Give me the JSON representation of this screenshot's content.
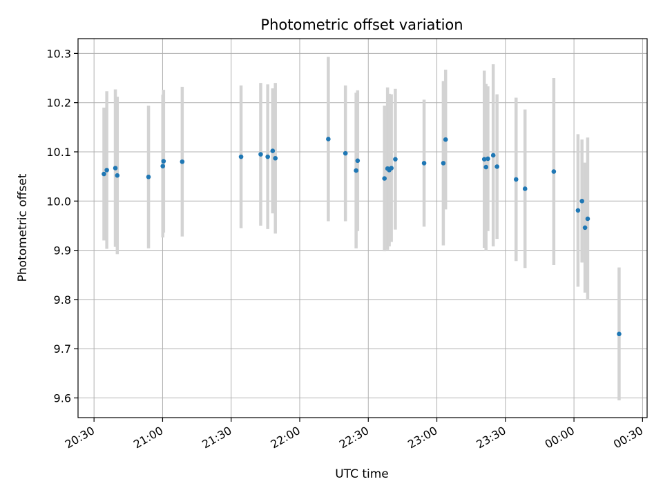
{
  "chart_data": {
    "type": "scatter",
    "title": "Photometric offset variation",
    "xlabel": "UTC time",
    "ylabel": "Photometric offset",
    "xlim": [
      "20:23",
      "00:32"
    ],
    "ylim": [
      9.56,
      10.33
    ],
    "x_ticks": [
      "20:30",
      "21:00",
      "21:30",
      "22:00",
      "22:30",
      "23:00",
      "23:30",
      "00:00",
      "00:30"
    ],
    "y_ticks": [
      9.6,
      9.7,
      9.8,
      9.9,
      10.0,
      10.1,
      10.2,
      10.3
    ],
    "grid": true,
    "colors": {
      "point": "#1f77b4",
      "errorbar": "#d3d3d3",
      "grid": "#b0b0b0"
    },
    "points": [
      {
        "time": "20:34:20",
        "y": 10.055,
        "err": 0.135
      },
      {
        "time": "20:35:35",
        "y": 10.063,
        "err": 0.16
      },
      {
        "time": "20:39:20",
        "y": 10.067,
        "err": 0.16
      },
      {
        "time": "20:40:10",
        "y": 10.052,
        "err": 0.16
      },
      {
        "time": "20:53:50",
        "y": 10.049,
        "err": 0.145
      },
      {
        "time": "21:00:05",
        "y": 10.071,
        "err": 0.145
      },
      {
        "time": "21:00:25",
        "y": 10.081,
        "err": 0.145
      },
      {
        "time": "21:08:35",
        "y": 10.08,
        "err": 0.152
      },
      {
        "time": "21:34:20",
        "y": 10.09,
        "err": 0.145
      },
      {
        "time": "21:42:55",
        "y": 10.095,
        "err": 0.145
      },
      {
        "time": "21:46:00",
        "y": 10.09,
        "err": 0.147
      },
      {
        "time": "21:48:10",
        "y": 10.102,
        "err": 0.127
      },
      {
        "time": "21:49:20",
        "y": 10.087,
        "err": 0.153
      },
      {
        "time": "22:12:30",
        "y": 10.126,
        "err": 0.167
      },
      {
        "time": "22:20:00",
        "y": 10.097,
        "err": 0.138
      },
      {
        "time": "22:24:40",
        "y": 10.062,
        "err": 0.158
      },
      {
        "time": "22:25:20",
        "y": 10.082,
        "err": 0.143
      },
      {
        "time": "22:37:05",
        "y": 10.046,
        "err": 0.148
      },
      {
        "time": "22:38:25",
        "y": 10.066,
        "err": 0.165
      },
      {
        "time": "22:39:10",
        "y": 10.063,
        "err": 0.155
      },
      {
        "time": "22:40:05",
        "y": 10.067,
        "err": 0.15
      },
      {
        "time": "22:41:50",
        "y": 10.085,
        "err": 0.143
      },
      {
        "time": "22:54:25",
        "y": 10.077,
        "err": 0.129
      },
      {
        "time": "23:02:50",
        "y": 10.077,
        "err": 0.167
      },
      {
        "time": "23:03:50",
        "y": 10.125,
        "err": 0.142
      },
      {
        "time": "23:20:45",
        "y": 10.085,
        "err": 0.18
      },
      {
        "time": "23:21:30",
        "y": 10.069,
        "err": 0.169
      },
      {
        "time": "23:22:20",
        "y": 10.086,
        "err": 0.147
      },
      {
        "time": "23:24:40",
        "y": 10.093,
        "err": 0.185
      },
      {
        "time": "23:26:20",
        "y": 10.07,
        "err": 0.147
      },
      {
        "time": "23:34:40",
        "y": 10.044,
        "err": 0.166
      },
      {
        "time": "23:38:35",
        "y": 10.025,
        "err": 0.161
      },
      {
        "time": "23:51:10",
        "y": 10.06,
        "err": 0.19
      },
      {
        "time": "00:01:45",
        "y": 9.981,
        "err": 0.155
      },
      {
        "time": "00:03:30",
        "y": 10.0,
        "err": 0.125
      },
      {
        "time": "00:04:50",
        "y": 9.946,
        "err": 0.132
      },
      {
        "time": "00:06:00",
        "y": 9.964,
        "err": 0.165
      },
      {
        "time": "00:19:45",
        "y": 9.73,
        "err": 0.135
      }
    ]
  }
}
